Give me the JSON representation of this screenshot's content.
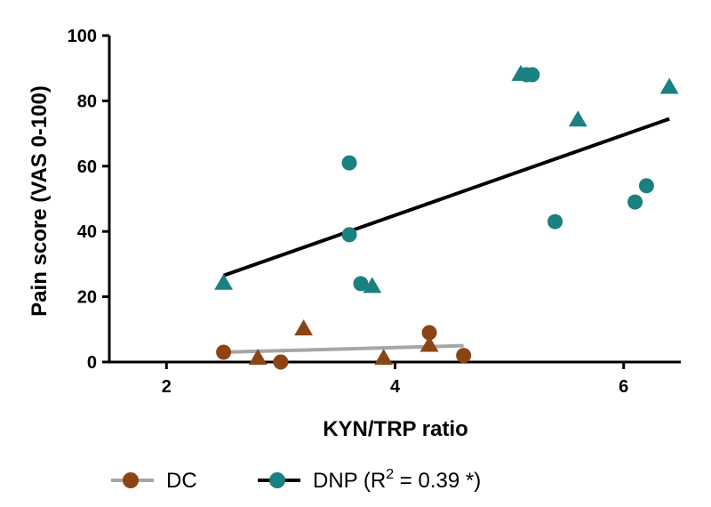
{
  "chart_data": {
    "type": "scatter",
    "xlabel": "KYN/TRP ratio",
    "ylabel": "Pain score (VAS 0-100)",
    "xlim": [
      1.5,
      6.5
    ],
    "ylim": [
      0,
      100
    ],
    "xticks": [
      2,
      4,
      6
    ],
    "yticks": [
      0,
      20,
      40,
      60,
      80,
      100
    ],
    "grid": false,
    "legend_position": "bottom",
    "series": [
      {
        "name": "DC",
        "color": "#8B4513",
        "line_color": "#a6a6a6",
        "circles": [
          [
            2.5,
            3
          ],
          [
            3.0,
            0
          ],
          [
            4.3,
            9
          ],
          [
            4.6,
            2
          ]
        ],
        "triangles": [
          [
            2.8,
            1
          ],
          [
            3.2,
            10
          ],
          [
            3.9,
            1
          ],
          [
            4.3,
            5
          ]
        ],
        "regression": [
          [
            2.5,
            3
          ],
          [
            4.6,
            5
          ]
        ]
      },
      {
        "name": "DNP",
        "color": "#1a8080",
        "line_color": "#000000",
        "circles": [
          [
            3.6,
            61
          ],
          [
            3.6,
            39
          ],
          [
            3.7,
            24
          ],
          [
            5.15,
            88
          ],
          [
            5.2,
            88
          ],
          [
            5.4,
            43
          ],
          [
            6.1,
            49
          ],
          [
            6.2,
            54
          ]
        ],
        "triangles": [
          [
            2.5,
            24
          ],
          [
            3.8,
            23
          ],
          [
            5.1,
            88
          ],
          [
            5.6,
            74
          ],
          [
            6.4,
            84
          ]
        ],
        "regression": [
          [
            2.5,
            26.5
          ],
          [
            6.4,
            74.5
          ]
        ]
      }
    ],
    "legend": [
      {
        "label": "DC",
        "suffix": "",
        "sup": "",
        "tail": ""
      },
      {
        "label": "DNP (R",
        "sup": "2",
        "tail": " = 0.39 *)"
      }
    ]
  }
}
